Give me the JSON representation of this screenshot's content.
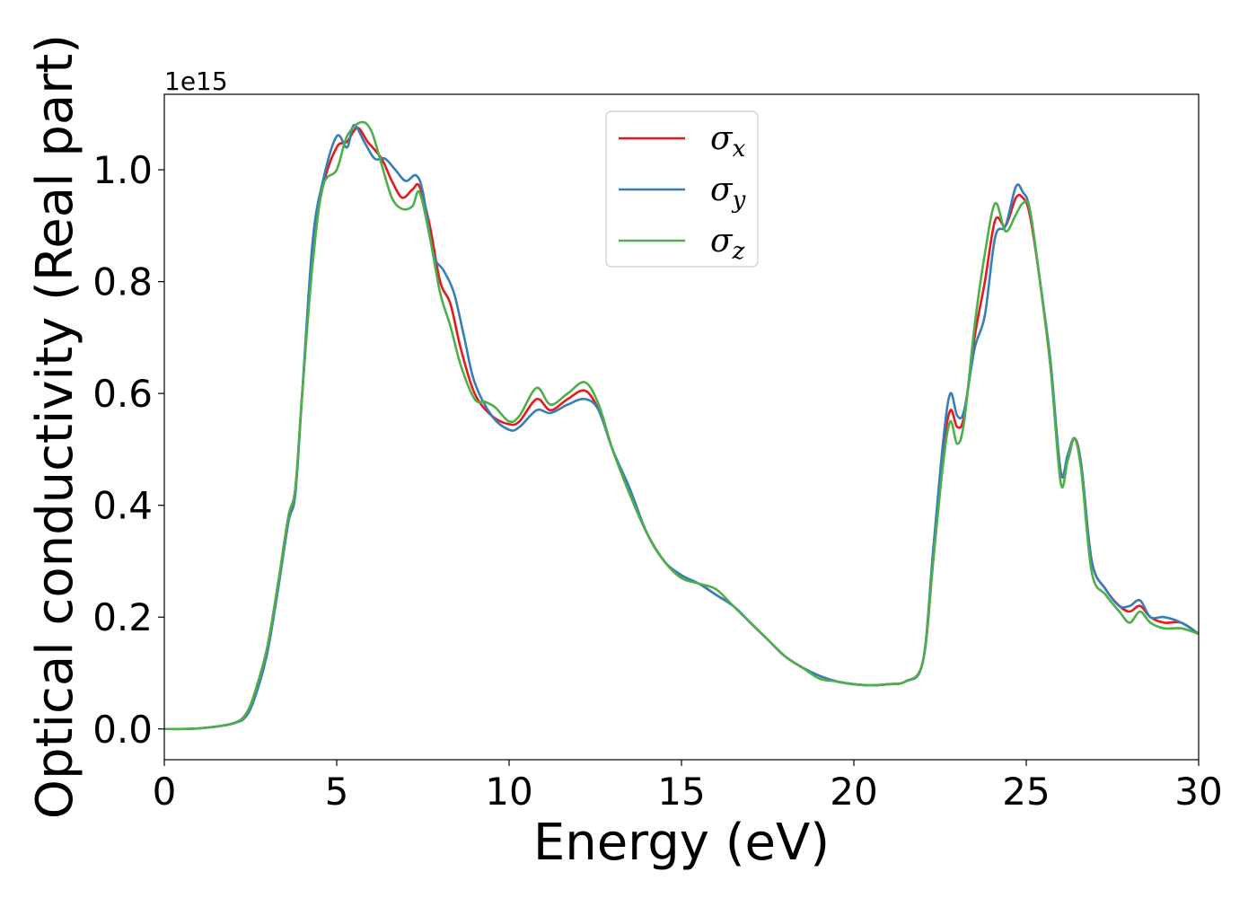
{
  "chart_data": {
    "type": "line",
    "title": "",
    "xlabel": "Energy (eV)",
    "ylabel": "Optical conductivity (Real part)",
    "y_offset_label": "1e15",
    "xlim": [
      0,
      30
    ],
    "ylim": [
      -0.055,
      1.135
    ],
    "x_ticks": [
      0,
      5,
      10,
      15,
      20,
      25,
      30
    ],
    "x_tick_labels": [
      "0",
      "5",
      "10",
      "15",
      "20",
      "25",
      "30"
    ],
    "y_ticks": [
      0.0,
      0.2,
      0.4,
      0.6,
      0.8,
      1.0
    ],
    "y_tick_labels": [
      "0.0",
      "0.2",
      "0.4",
      "0.6",
      "0.8",
      "1.0"
    ],
    "grid": false,
    "legend_position": "top-center",
    "series": [
      {
        "name": "σx",
        "symbol": "σ",
        "subscript": "x",
        "color": "#e41a1c",
        "points": [
          [
            0,
            0
          ],
          [
            1,
            0.001
          ],
          [
            2,
            0.01
          ],
          [
            2.4,
            0.03
          ],
          [
            2.7,
            0.08
          ],
          [
            3,
            0.15
          ],
          [
            3.3,
            0.26
          ],
          [
            3.6,
            0.38
          ],
          [
            3.8,
            0.43
          ],
          [
            4,
            0.6
          ],
          [
            4.3,
            0.85
          ],
          [
            4.6,
            0.97
          ],
          [
            5,
            1.04
          ],
          [
            5.3,
            1.05
          ],
          [
            5.6,
            1.075
          ],
          [
            5.9,
            1.05
          ],
          [
            6.3,
            1.02
          ],
          [
            6.6,
            0.98
          ],
          [
            6.9,
            0.95
          ],
          [
            7.2,
            0.965
          ],
          [
            7.4,
            0.97
          ],
          [
            7.7,
            0.9
          ],
          [
            8,
            0.8
          ],
          [
            8.3,
            0.76
          ],
          [
            8.6,
            0.68
          ],
          [
            9,
            0.6
          ],
          [
            9.5,
            0.56
          ],
          [
            10,
            0.545
          ],
          [
            10.3,
            0.55
          ],
          [
            10.8,
            0.59
          ],
          [
            11.2,
            0.57
          ],
          [
            11.7,
            0.59
          ],
          [
            12.2,
            0.605
          ],
          [
            12.6,
            0.57
          ],
          [
            13,
            0.5
          ],
          [
            13.5,
            0.42
          ],
          [
            14,
            0.35
          ],
          [
            14.5,
            0.3
          ],
          [
            15,
            0.27
          ],
          [
            15.5,
            0.26
          ],
          [
            16,
            0.24
          ],
          [
            16.5,
            0.22
          ],
          [
            17,
            0.19
          ],
          [
            17.5,
            0.16
          ],
          [
            18,
            0.13
          ],
          [
            18.5,
            0.11
          ],
          [
            19,
            0.095
          ],
          [
            19.5,
            0.085
          ],
          [
            20,
            0.08
          ],
          [
            20.5,
            0.078
          ],
          [
            21,
            0.08
          ],
          [
            21.5,
            0.085
          ],
          [
            22,
            0.12
          ],
          [
            22.3,
            0.3
          ],
          [
            22.6,
            0.5
          ],
          [
            22.8,
            0.57
          ],
          [
            23,
            0.54
          ],
          [
            23.2,
            0.56
          ],
          [
            23.5,
            0.7
          ],
          [
            23.8,
            0.8
          ],
          [
            24.1,
            0.91
          ],
          [
            24.4,
            0.9
          ],
          [
            24.7,
            0.95
          ],
          [
            24.9,
            0.95
          ],
          [
            25.1,
            0.92
          ],
          [
            25.4,
            0.8
          ],
          [
            25.7,
            0.65
          ],
          [
            26,
            0.46
          ],
          [
            26.2,
            0.48
          ],
          [
            26.4,
            0.52
          ],
          [
            26.6,
            0.47
          ],
          [
            26.9,
            0.3
          ],
          [
            27.3,
            0.25
          ],
          [
            27.7,
            0.22
          ],
          [
            28,
            0.21
          ],
          [
            28.3,
            0.22
          ],
          [
            28.6,
            0.2
          ],
          [
            29,
            0.19
          ],
          [
            29.5,
            0.19
          ],
          [
            30,
            0.17
          ]
        ]
      },
      {
        "name": "σy",
        "symbol": "σ",
        "subscript": "y",
        "color": "#377eb8",
        "points": [
          [
            0,
            0
          ],
          [
            1,
            0.001
          ],
          [
            2,
            0.01
          ],
          [
            2.4,
            0.025
          ],
          [
            2.7,
            0.07
          ],
          [
            3,
            0.14
          ],
          [
            3.3,
            0.25
          ],
          [
            3.6,
            0.37
          ],
          [
            3.8,
            0.42
          ],
          [
            4,
            0.6
          ],
          [
            4.3,
            0.87
          ],
          [
            4.6,
            0.98
          ],
          [
            5,
            1.06
          ],
          [
            5.3,
            1.04
          ],
          [
            5.5,
            1.08
          ],
          [
            5.8,
            1.05
          ],
          [
            6.1,
            1.02
          ],
          [
            6.4,
            1.02
          ],
          [
            6.7,
            1.0
          ],
          [
            7,
            0.98
          ],
          [
            7.3,
            0.99
          ],
          [
            7.5,
            0.96
          ],
          [
            7.8,
            0.85
          ],
          [
            8.1,
            0.82
          ],
          [
            8.4,
            0.78
          ],
          [
            8.7,
            0.7
          ],
          [
            9,
            0.62
          ],
          [
            9.5,
            0.56
          ],
          [
            10,
            0.535
          ],
          [
            10.3,
            0.54
          ],
          [
            10.8,
            0.57
          ],
          [
            11.2,
            0.565
          ],
          [
            11.7,
            0.58
          ],
          [
            12.2,
            0.59
          ],
          [
            12.6,
            0.57
          ],
          [
            13,
            0.5
          ],
          [
            13.5,
            0.43
          ],
          [
            14,
            0.35
          ],
          [
            14.5,
            0.3
          ],
          [
            15,
            0.275
          ],
          [
            15.5,
            0.26
          ],
          [
            16,
            0.24
          ],
          [
            16.5,
            0.22
          ],
          [
            17,
            0.19
          ],
          [
            17.5,
            0.16
          ],
          [
            18,
            0.13
          ],
          [
            18.5,
            0.11
          ],
          [
            19,
            0.095
          ],
          [
            19.5,
            0.085
          ],
          [
            20,
            0.08
          ],
          [
            20.5,
            0.078
          ],
          [
            21,
            0.08
          ],
          [
            21.5,
            0.085
          ],
          [
            22,
            0.12
          ],
          [
            22.3,
            0.32
          ],
          [
            22.6,
            0.52
          ],
          [
            22.8,
            0.6
          ],
          [
            23,
            0.56
          ],
          [
            23.2,
            0.57
          ],
          [
            23.5,
            0.68
          ],
          [
            23.8,
            0.74
          ],
          [
            24.1,
            0.88
          ],
          [
            24.4,
            0.9
          ],
          [
            24.7,
            0.97
          ],
          [
            24.9,
            0.96
          ],
          [
            25.1,
            0.93
          ],
          [
            25.4,
            0.8
          ],
          [
            25.7,
            0.66
          ],
          [
            26,
            0.46
          ],
          [
            26.2,
            0.49
          ],
          [
            26.4,
            0.52
          ],
          [
            26.6,
            0.47
          ],
          [
            26.9,
            0.3
          ],
          [
            27.3,
            0.25
          ],
          [
            27.7,
            0.22
          ],
          [
            28,
            0.22
          ],
          [
            28.3,
            0.23
          ],
          [
            28.6,
            0.2
          ],
          [
            29,
            0.2
          ],
          [
            29.5,
            0.19
          ],
          [
            30,
            0.17
          ]
        ]
      },
      {
        "name": "σz",
        "symbol": "σ",
        "subscript": "z",
        "color": "#4daf4a",
        "points": [
          [
            0,
            0
          ],
          [
            1,
            0.001
          ],
          [
            2,
            0.01
          ],
          [
            2.4,
            0.03
          ],
          [
            2.7,
            0.08
          ],
          [
            3,
            0.15
          ],
          [
            3.3,
            0.26
          ],
          [
            3.6,
            0.38
          ],
          [
            3.8,
            0.43
          ],
          [
            4,
            0.6
          ],
          [
            4.3,
            0.83
          ],
          [
            4.6,
            0.97
          ],
          [
            5,
            1.0
          ],
          [
            5.3,
            1.06
          ],
          [
            5.7,
            1.085
          ],
          [
            6,
            1.07
          ],
          [
            6.3,
            1.01
          ],
          [
            6.6,
            0.95
          ],
          [
            6.9,
            0.93
          ],
          [
            7.2,
            0.935
          ],
          [
            7.4,
            0.96
          ],
          [
            7.7,
            0.88
          ],
          [
            8,
            0.78
          ],
          [
            8.3,
            0.72
          ],
          [
            8.6,
            0.65
          ],
          [
            9,
            0.59
          ],
          [
            9.3,
            0.585
          ],
          [
            9.6,
            0.575
          ],
          [
            10,
            0.55
          ],
          [
            10.3,
            0.56
          ],
          [
            10.8,
            0.61
          ],
          [
            11.2,
            0.58
          ],
          [
            11.7,
            0.6
          ],
          [
            12.2,
            0.62
          ],
          [
            12.6,
            0.58
          ],
          [
            13,
            0.5
          ],
          [
            13.5,
            0.42
          ],
          [
            14,
            0.35
          ],
          [
            14.5,
            0.3
          ],
          [
            15,
            0.27
          ],
          [
            15.5,
            0.26
          ],
          [
            16,
            0.25
          ],
          [
            16.5,
            0.22
          ],
          [
            17,
            0.19
          ],
          [
            17.5,
            0.16
          ],
          [
            18,
            0.13
          ],
          [
            18.5,
            0.11
          ],
          [
            19,
            0.09
          ],
          [
            19.5,
            0.085
          ],
          [
            20,
            0.08
          ],
          [
            20.5,
            0.078
          ],
          [
            21,
            0.08
          ],
          [
            21.5,
            0.085
          ],
          [
            22,
            0.12
          ],
          [
            22.3,
            0.3
          ],
          [
            22.6,
            0.48
          ],
          [
            22.8,
            0.55
          ],
          [
            23,
            0.51
          ],
          [
            23.2,
            0.55
          ],
          [
            23.5,
            0.72
          ],
          [
            23.8,
            0.85
          ],
          [
            24.1,
            0.94
          ],
          [
            24.4,
            0.89
          ],
          [
            24.7,
            0.92
          ],
          [
            24.9,
            0.94
          ],
          [
            25.1,
            0.93
          ],
          [
            25.4,
            0.8
          ],
          [
            25.7,
            0.65
          ],
          [
            26,
            0.44
          ],
          [
            26.2,
            0.48
          ],
          [
            26.4,
            0.52
          ],
          [
            26.6,
            0.46
          ],
          [
            26.9,
            0.28
          ],
          [
            27.3,
            0.24
          ],
          [
            27.7,
            0.21
          ],
          [
            28,
            0.19
          ],
          [
            28.3,
            0.21
          ],
          [
            28.6,
            0.19
          ],
          [
            29,
            0.18
          ],
          [
            29.5,
            0.18
          ],
          [
            30,
            0.17
          ]
        ]
      }
    ]
  }
}
